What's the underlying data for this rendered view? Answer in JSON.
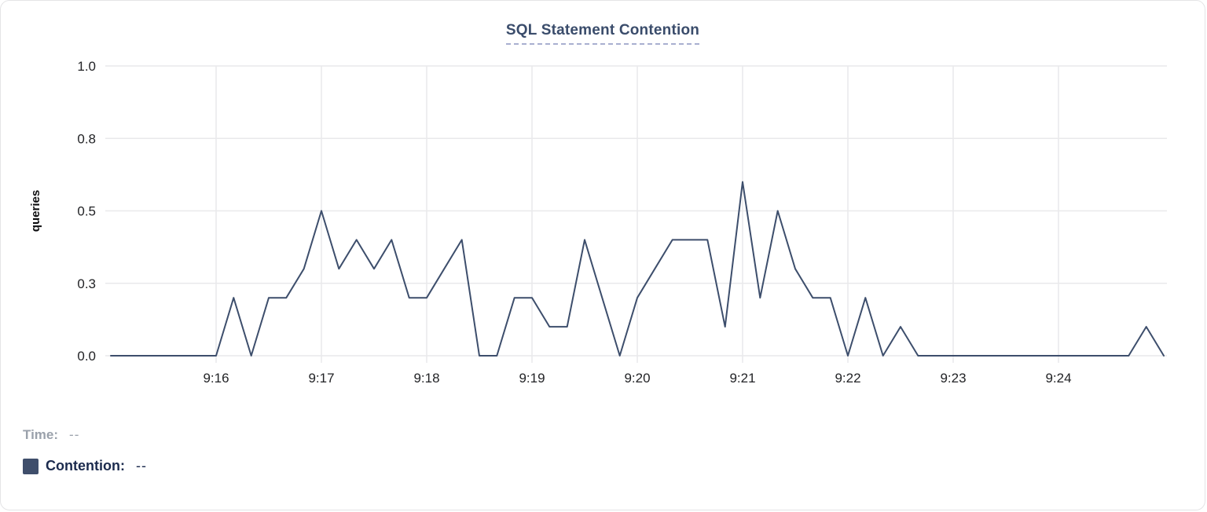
{
  "panel": {
    "title": "SQL Statement Contention"
  },
  "legend": {
    "position": "bottom-left",
    "time_label": "Time:",
    "time_value": "--",
    "contention_label": "Contention:",
    "contention_value": "--",
    "swatch_color": "#3f4e6b",
    "time_color": "#9aa1ab",
    "contention_color": "#1c2b4e"
  },
  "chart_data": {
    "type": "line",
    "title": "SQL Statement Contention",
    "xlabel": "",
    "ylabel": "queries",
    "ylim": [
      0,
      1
    ],
    "grid": true,
    "y_ticks": [
      {
        "value": 0.0,
        "label": "0.0"
      },
      {
        "value": 0.25,
        "label": "0.3"
      },
      {
        "value": 0.5,
        "label": "0.5"
      },
      {
        "value": 0.75,
        "label": "0.8"
      },
      {
        "value": 1.0,
        "label": "1.0"
      }
    ],
    "x_ticks": [
      {
        "label": "9:16"
      },
      {
        "label": "9:17"
      },
      {
        "label": "9:18"
      },
      {
        "label": "9:19"
      },
      {
        "label": "9:20"
      },
      {
        "label": "9:21"
      },
      {
        "label": "9:22"
      },
      {
        "label": "9:23"
      },
      {
        "label": "9:24"
      }
    ],
    "x_range": [
      "9:15:00",
      "9:25:00"
    ],
    "series": [
      {
        "name": "Contention",
        "color": "#3d4e6c",
        "x_start": "9:15:00",
        "x_interval_seconds": 10,
        "values": [
          0,
          0,
          0,
          0,
          0,
          0,
          0,
          0.2,
          0,
          0.2,
          0.2,
          0.3,
          0.5,
          0.3,
          0.4,
          0.3,
          0.4,
          0.2,
          0.2,
          0.3,
          0.4,
          0,
          0,
          0.2,
          0.2,
          0.1,
          0.1,
          0.4,
          0.2,
          0,
          0.2,
          0.3,
          0.4,
          0.4,
          0.4,
          0.1,
          0.6,
          0.2,
          0.5,
          0.3,
          0.2,
          0.2,
          0,
          0.2,
          0,
          0.1,
          0,
          0,
          0,
          0,
          0,
          0,
          0,
          0,
          0,
          0,
          0,
          0,
          0,
          0.1,
          0
        ]
      }
    ]
  }
}
